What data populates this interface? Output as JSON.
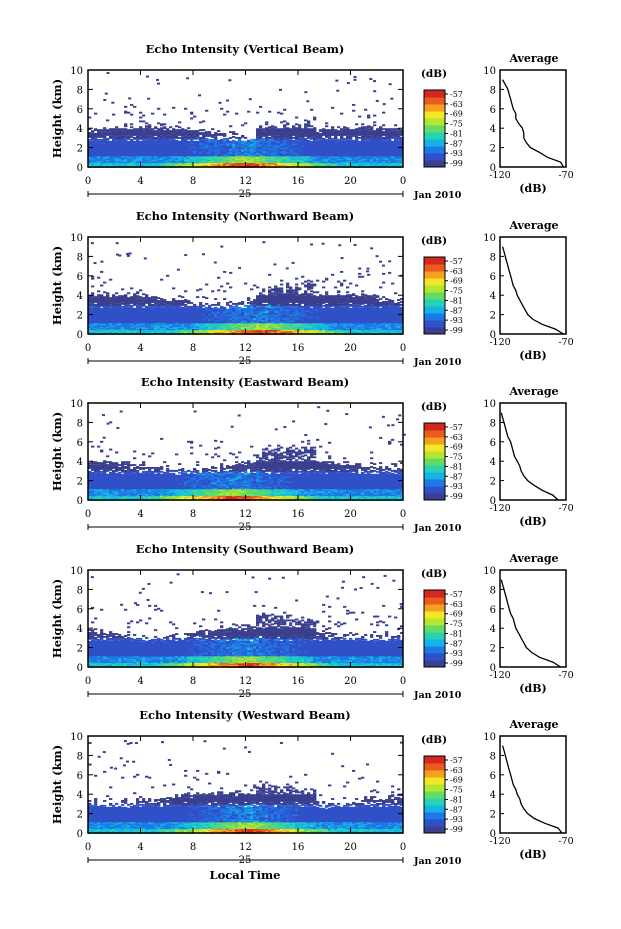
{
  "common": {
    "ylabel": "Height (km)",
    "cb_unit": "(dB)",
    "cb_ticks": [
      "-57",
      "-63",
      "-69",
      "-75",
      "-81",
      "-87",
      "-93",
      "-99"
    ],
    "date_day": "25",
    "date_month": "Jan 2010",
    "avg_title": "Average",
    "avg_xlabel": "(dB)",
    "avg_xticks": [
      "-120",
      "-70"
    ],
    "xlabel_bottom": "Local Time"
  },
  "colors": {
    "colorbar": [
      "#3a3f8f",
      "#3050c8",
      "#1e78e6",
      "#14b4e6",
      "#2ad2b4",
      "#64dc64",
      "#b4e632",
      "#f5e628",
      "#f5a01e",
      "#eb5a1e",
      "#d2281e"
    ]
  },
  "chart_data": [
    {
      "type": "heatmap",
      "title": "Echo Intensity (Vertical Beam)",
      "x_ticks": [
        "0",
        "4",
        "8",
        "12",
        "16",
        "20",
        "0"
      ],
      "y_ticks": [
        "0",
        "2",
        "4",
        "6",
        "8",
        "10"
      ],
      "xlim": [
        0,
        24
      ],
      "ylim": [
        0,
        10
      ],
      "zlim": [
        -99,
        -57
      ],
      "peak_local_time": 12,
      "average_profile": {
        "type": "line",
        "xlim": [
          -120,
          -70
        ],
        "ylim": [
          0,
          10
        ],
        "height_km": [
          0,
          0.5,
          1,
          1.5,
          2,
          2.5,
          3,
          3.5,
          4,
          4.5,
          5,
          5.5,
          6,
          6.5,
          7,
          7.5,
          8,
          8.5,
          9
        ],
        "db": [
          -72,
          -74,
          -84,
          -90,
          -97,
          -100,
          -102,
          -102,
          -103,
          -106,
          -108,
          -108,
          -110,
          -111,
          -112,
          -113,
          -114,
          -116,
          -118
        ]
      }
    },
    {
      "type": "heatmap",
      "title": "Echo Intensity (Northward Beam)",
      "x_ticks": [
        "0",
        "4",
        "8",
        "12",
        "16",
        "20",
        "0"
      ],
      "y_ticks": [
        "0",
        "2",
        "4",
        "6",
        "8",
        "10"
      ],
      "xlim": [
        0,
        24
      ],
      "ylim": [
        0,
        10
      ],
      "zlim": [
        -99,
        -57
      ],
      "peak_local_time": 13,
      "average_profile": {
        "type": "line",
        "xlim": [
          -120,
          -70
        ],
        "ylim": [
          0,
          10
        ],
        "height_km": [
          0,
          0.5,
          1,
          1.5,
          2,
          2.5,
          3,
          3.5,
          4,
          4.5,
          5,
          5.5,
          6,
          6.5,
          7,
          7.5,
          8,
          8.5,
          9
        ],
        "db": [
          -72,
          -78,
          -88,
          -95,
          -99,
          -101,
          -103,
          -105,
          -107,
          -108,
          -110,
          -111,
          -112,
          -113,
          -114,
          -115,
          -116,
          -117,
          -118
        ]
      }
    },
    {
      "type": "heatmap",
      "title": "Echo Intensity (Eastward Beam)",
      "x_ticks": [
        "0",
        "4",
        "8",
        "12",
        "16",
        "20",
        "0"
      ],
      "y_ticks": [
        "0",
        "2",
        "4",
        "6",
        "8",
        "10"
      ],
      "xlim": [
        0,
        24
      ],
      "ylim": [
        0,
        10
      ],
      "zlim": [
        -99,
        -57
      ],
      "peak_local_time": 11,
      "average_profile": {
        "type": "line",
        "xlim": [
          -120,
          -70
        ],
        "ylim": [
          0,
          10
        ],
        "height_km": [
          0,
          0.5,
          1,
          1.5,
          2,
          2.5,
          3,
          3.5,
          4,
          4.5,
          5,
          5.5,
          6,
          6.5,
          7,
          7.5,
          8,
          8.5,
          9
        ],
        "db": [
          -76,
          -80,
          -88,
          -94,
          -99,
          -102,
          -104,
          -105,
          -107,
          -109,
          -110,
          -111,
          -112,
          -114,
          -115,
          -116,
          -117,
          -118,
          -119
        ]
      }
    },
    {
      "type": "heatmap",
      "title": "Echo Intensity (Southward Beam)",
      "x_ticks": [
        "0",
        "4",
        "8",
        "12",
        "16",
        "20",
        "0"
      ],
      "y_ticks": [
        "0",
        "2",
        "4",
        "6",
        "8",
        "10"
      ],
      "xlim": [
        0,
        24
      ],
      "ylim": [
        0,
        10
      ],
      "zlim": [
        -99,
        -57
      ],
      "peak_local_time": 12,
      "average_profile": {
        "type": "line",
        "xlim": [
          -120,
          -70
        ],
        "ylim": [
          0,
          10
        ],
        "height_km": [
          0,
          0.5,
          1,
          1.5,
          2,
          2.5,
          3,
          3.5,
          4,
          4.5,
          5,
          5.5,
          6,
          6.5,
          7,
          7.5,
          8,
          8.5,
          9
        ],
        "db": [
          -74,
          -80,
          -90,
          -96,
          -100,
          -102,
          -104,
          -106,
          -108,
          -109,
          -110,
          -112,
          -113,
          -114,
          -115,
          -116,
          -117,
          -118,
          -119
        ]
      }
    },
    {
      "type": "heatmap",
      "title": "Echo Intensity (Westward Beam)",
      "x_ticks": [
        "0",
        "4",
        "8",
        "12",
        "16",
        "20",
        "0"
      ],
      "y_ticks": [
        "0",
        "2",
        "4",
        "6",
        "8",
        "10"
      ],
      "xlim": [
        0,
        24
      ],
      "ylim": [
        0,
        10
      ],
      "zlim": [
        -99,
        -57
      ],
      "peak_local_time": 12,
      "average_profile": {
        "type": "line",
        "xlim": [
          -120,
          -70
        ],
        "ylim": [
          0,
          10
        ],
        "height_km": [
          0,
          0.5,
          1,
          1.5,
          2,
          2.5,
          3,
          3.5,
          4,
          4.5,
          5,
          5.5,
          6,
          6.5,
          7,
          7.5,
          8,
          8.5,
          9
        ],
        "db": [
          -73,
          -76,
          -86,
          -94,
          -99,
          -102,
          -104,
          -105,
          -107,
          -108,
          -110,
          -111,
          -112,
          -113,
          -114,
          -115,
          -116,
          -117,
          -118
        ]
      }
    }
  ]
}
